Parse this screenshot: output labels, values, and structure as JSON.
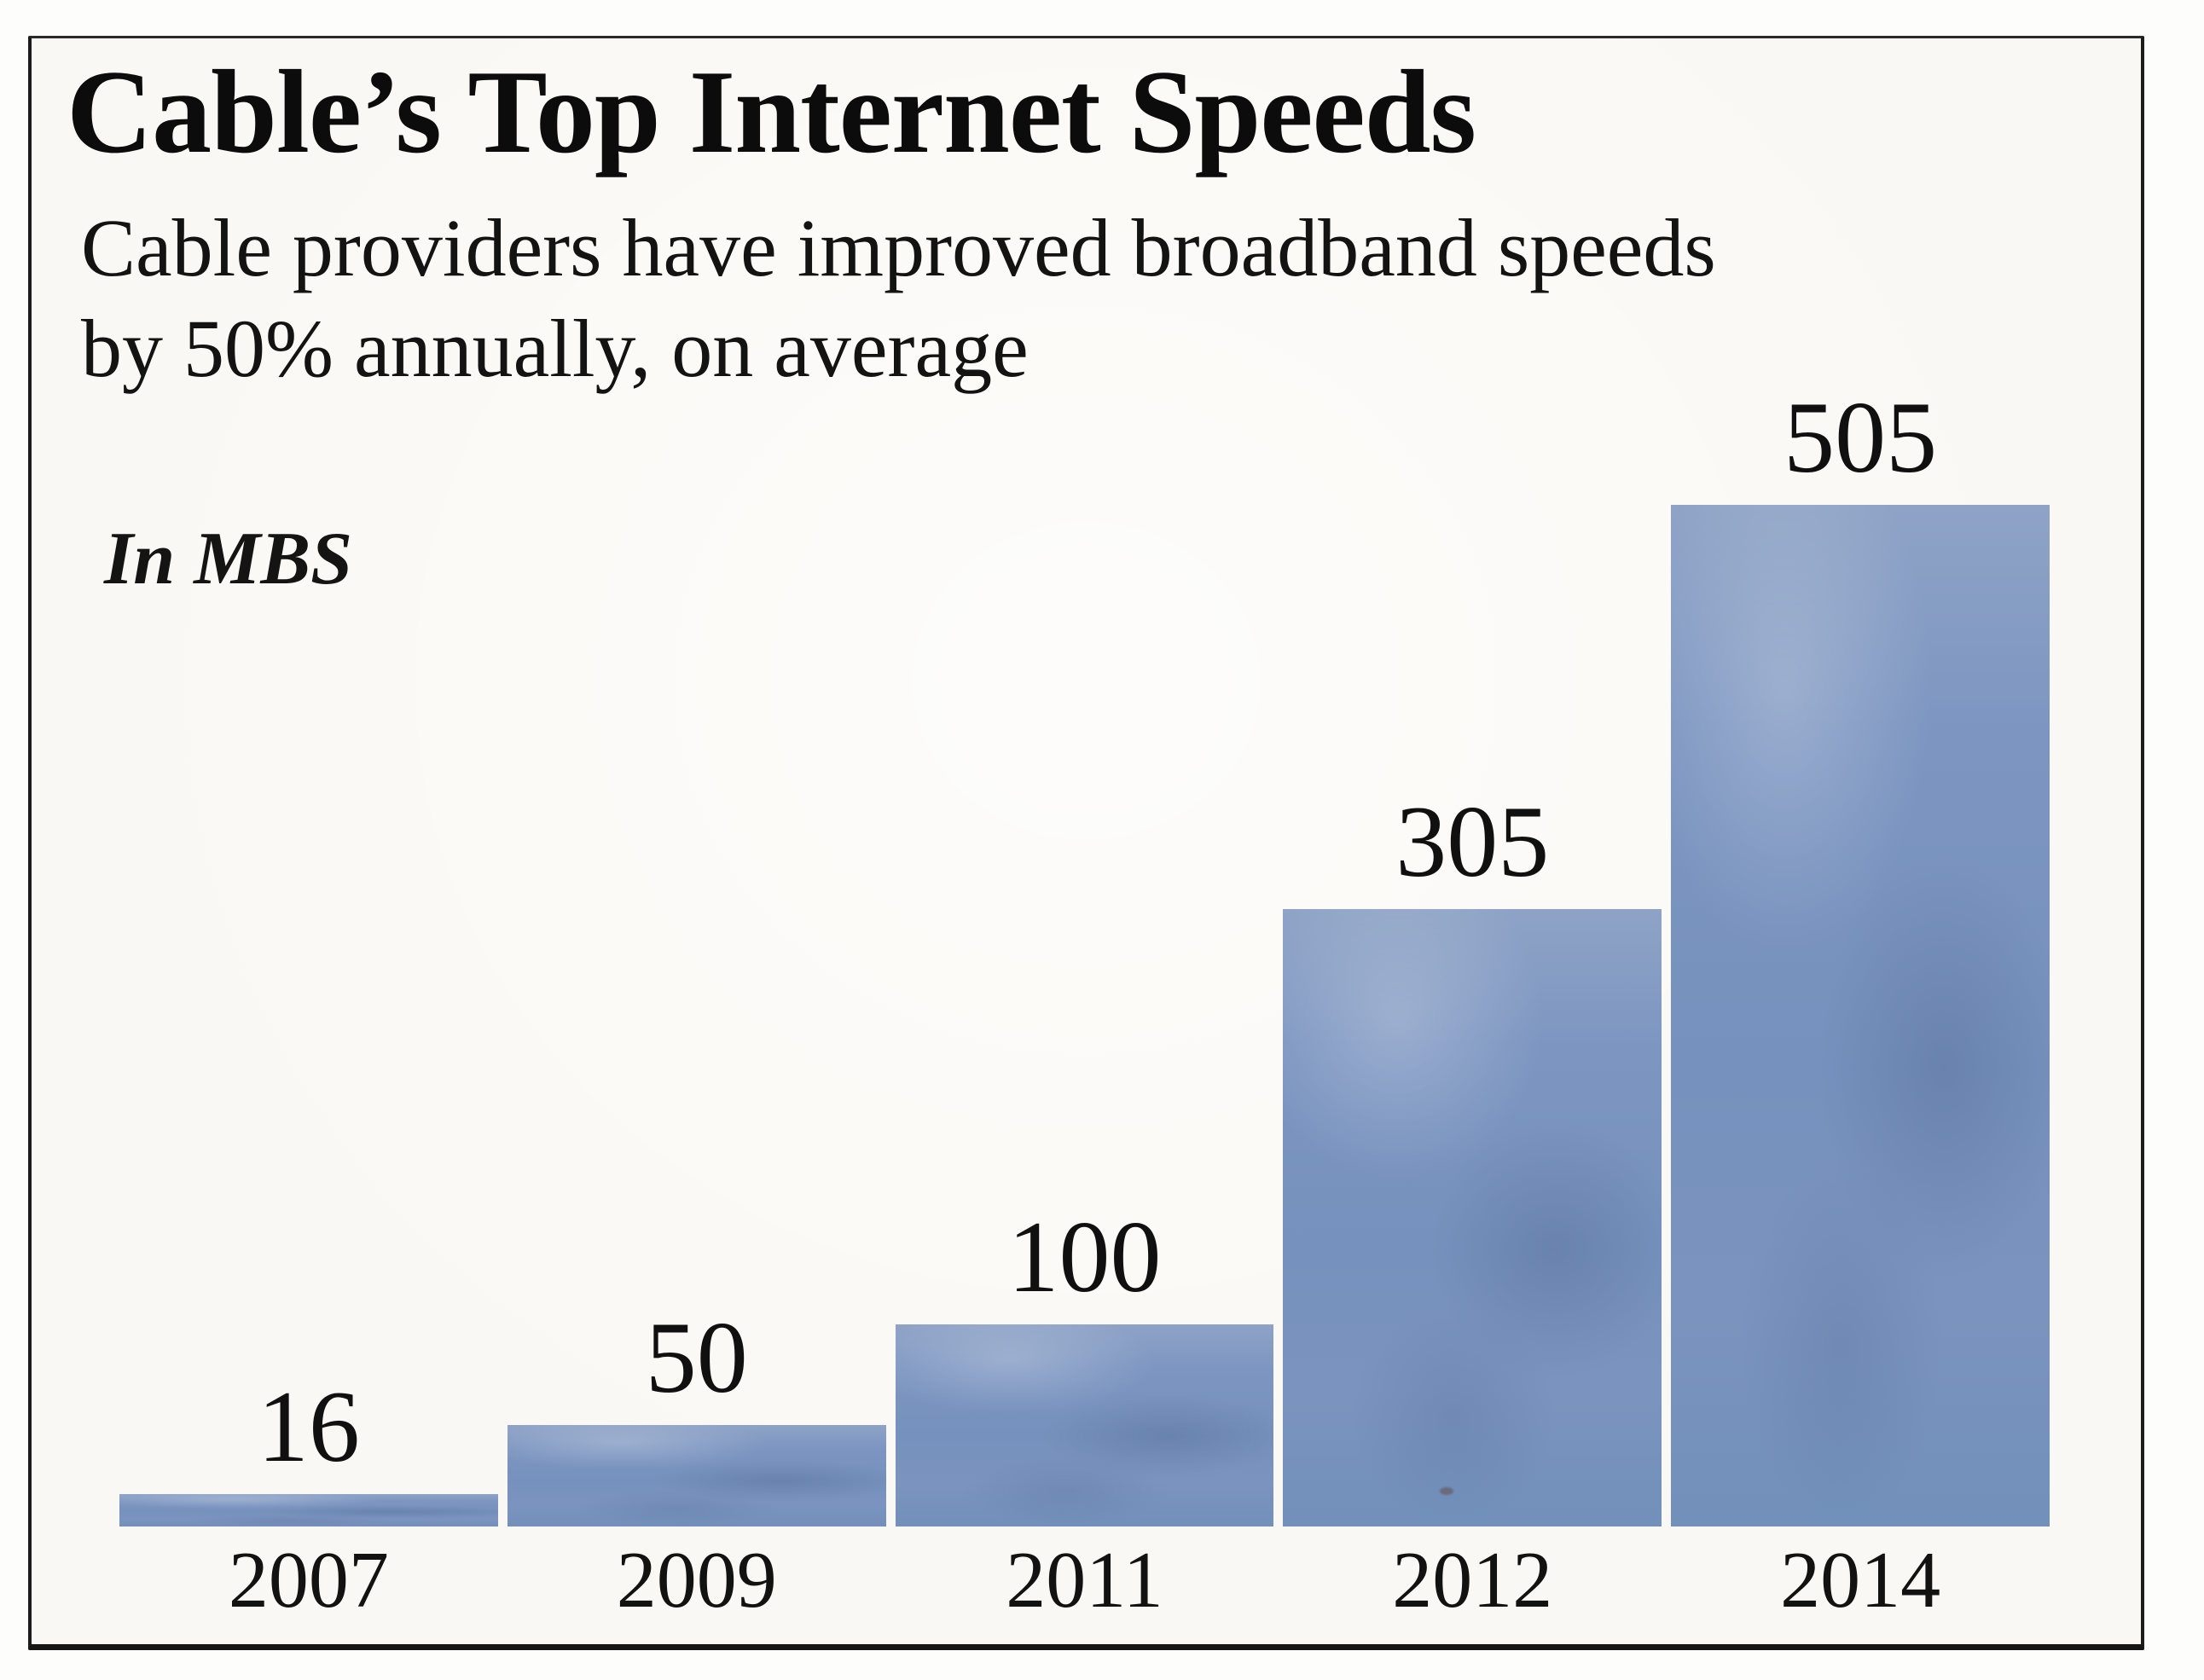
{
  "figure": {
    "title": "Cable’s Top Internet Speeds",
    "subtitle_line1": "Cable providers have improved broadband speeds",
    "subtitle_line2": "by 50% annually, on average",
    "unit_label": "In MBS"
  },
  "chart_data": {
    "type": "bar",
    "title": "Cable’s Top Internet Speeds",
    "subtitle": "Cable providers have improved broadband speeds by 50% annually, on average",
    "unit_label": "In MBS",
    "categories": [
      "2007",
      "2009",
      "2011",
      "2012",
      "2014"
    ],
    "values": [
      16,
      50,
      100,
      305,
      505
    ],
    "value_labels": [
      "16",
      "50",
      "100",
      "305",
      "505"
    ],
    "xlabel": "",
    "ylabel": "In MBS",
    "ylim": [
      0,
      505
    ],
    "grid": false,
    "legend": false,
    "bar_color": "#7b94bf",
    "text_color": "#111110",
    "background_color": "#faf8f4",
    "frame_color": "#1c1c1a"
  }
}
